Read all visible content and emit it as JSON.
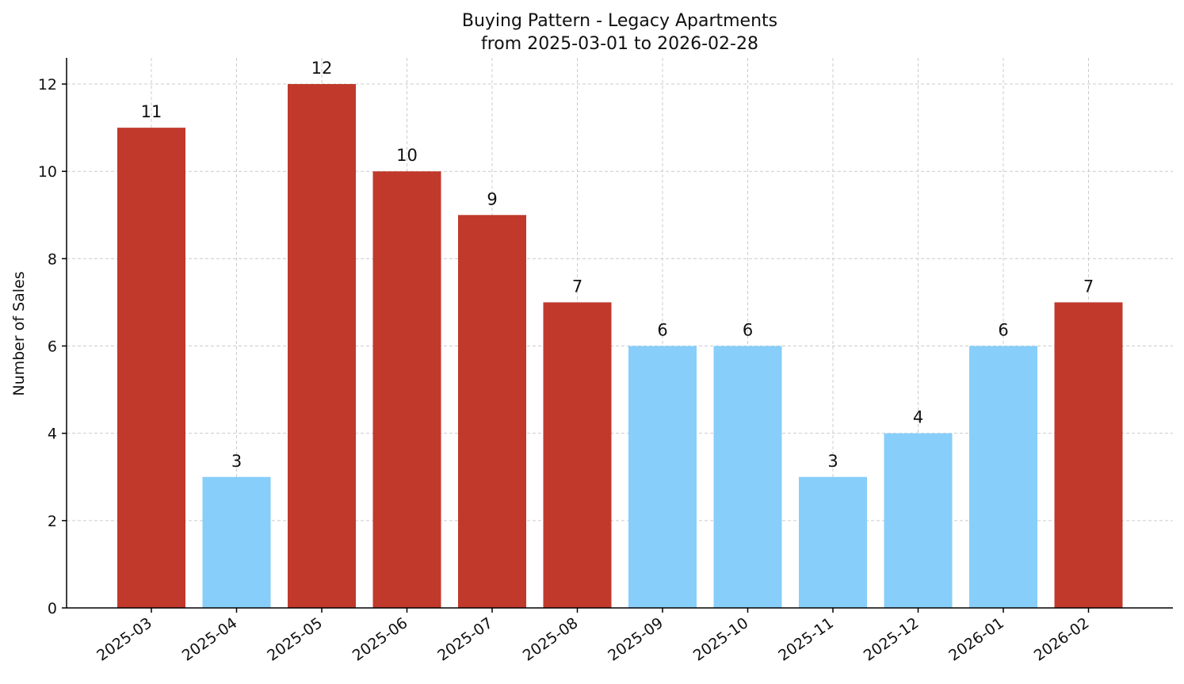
{
  "chart_data": {
    "type": "bar",
    "title": "Buying Pattern - Legacy Apartments",
    "subtitle": "from 2025-03-01 to 2026-02-28",
    "xlabel": "",
    "ylabel": "Number of Sales",
    "ylim": [
      0,
      12.6
    ],
    "yticks": [
      0,
      2,
      4,
      6,
      8,
      10,
      12
    ],
    "grid": true,
    "categories": [
      "2025-03",
      "2025-04",
      "2025-05",
      "2025-06",
      "2025-07",
      "2025-08",
      "2025-09",
      "2025-10",
      "2025-11",
      "2025-12",
      "2026-01",
      "2026-02"
    ],
    "values": [
      11,
      3,
      12,
      10,
      9,
      7,
      6,
      6,
      3,
      4,
      6,
      7
    ],
    "bar_colors": [
      "#c0392b",
      "#87cefa",
      "#c0392b",
      "#c0392b",
      "#c0392b",
      "#c0392b",
      "#87cefa",
      "#87cefa",
      "#87cefa",
      "#87cefa",
      "#87cefa",
      "#c0392b"
    ],
    "colors": {
      "high": "#c0392b",
      "low": "#87cefa"
    }
  }
}
